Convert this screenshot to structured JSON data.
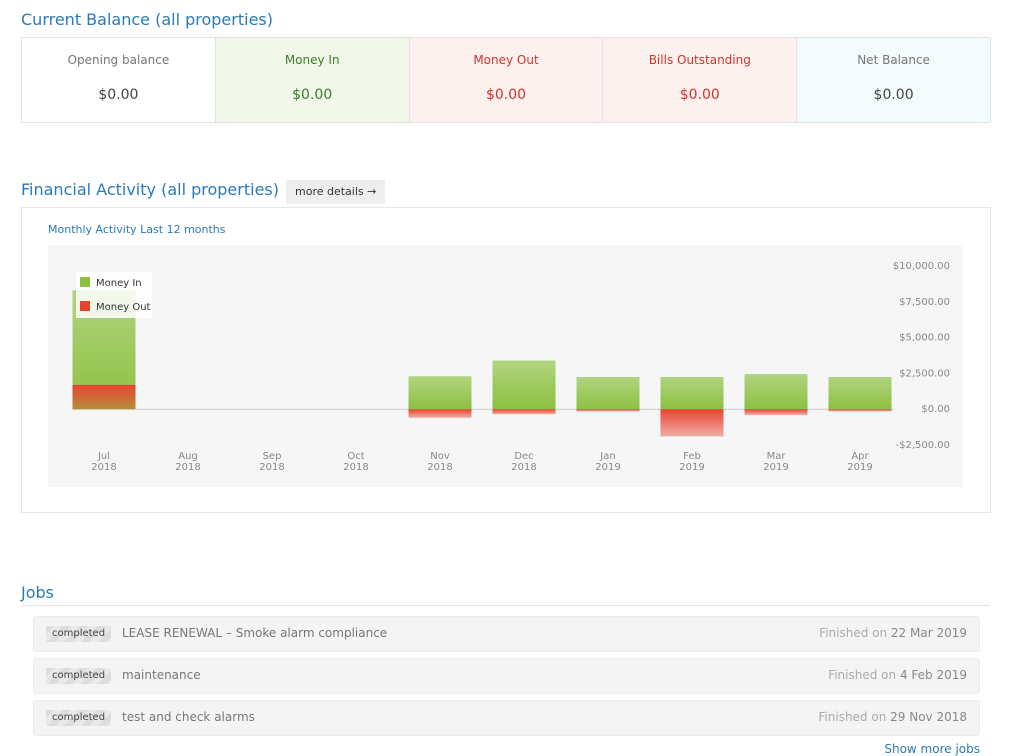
{
  "balance": {
    "title": "Current Balance (all properties)",
    "cells": [
      {
        "label": "Opening balance",
        "value": "$0.00"
      },
      {
        "label": "Money In",
        "value": "$0.00"
      },
      {
        "label": "Money Out",
        "value": "$0.00"
      },
      {
        "label": "Bills Outstanding",
        "value": "$0.00"
      },
      {
        "label": "Net Balance",
        "value": "$0.00"
      }
    ]
  },
  "activity": {
    "title": "Financial Activity (all properties)",
    "button": "more details →"
  },
  "chart_data": {
    "type": "bar",
    "title": "Monthly Activity Last 12 months",
    "categories": [
      "Jul 2018",
      "Aug 2018",
      "Sep 2018",
      "Oct 2018",
      "Nov 2018",
      "Dec 2018",
      "Jan 2019",
      "Feb 2019",
      "Mar 2019",
      "Apr 2019"
    ],
    "series": [
      {
        "name": "Money In",
        "color": "#8cc140",
        "values": [
          8300,
          0,
          0,
          0,
          2300,
          3400,
          2250,
          2250,
          2450,
          2250
        ]
      },
      {
        "name": "Money Out",
        "color": "#e8432f",
        "values": [
          1700,
          0,
          0,
          0,
          -600,
          -350,
          -150,
          -1900,
          -400,
          -150
        ]
      }
    ],
    "ylim": [
      -2500,
      10000
    ],
    "yticks": [
      {
        "value": -2500,
        "label": "-$2,500.00"
      },
      {
        "value": 0,
        "label": "$0.00"
      },
      {
        "value": 2500,
        "label": "$2,500.00"
      },
      {
        "value": 5000,
        "label": "$5,000.00"
      },
      {
        "value": 7500,
        "label": "$7,500.00"
      },
      {
        "value": 10000,
        "label": "$10,000.00"
      }
    ],
    "legend": "top-left"
  },
  "jobs": {
    "title": "Jobs",
    "rows": [
      {
        "status": "completed",
        "title": "LEASE RENEWAL – Smoke alarm compliance",
        "finished_label": "Finished on",
        "finished_date": "22 Mar 2019"
      },
      {
        "status": "completed",
        "title": "maintenance",
        "finished_label": "Finished on",
        "finished_date": "4 Feb 2019"
      },
      {
        "status": "completed",
        "title": "test and check alarms",
        "finished_label": "Finished on",
        "finished_date": "29 Nov 2018"
      }
    ],
    "more": "Show more jobs"
  }
}
